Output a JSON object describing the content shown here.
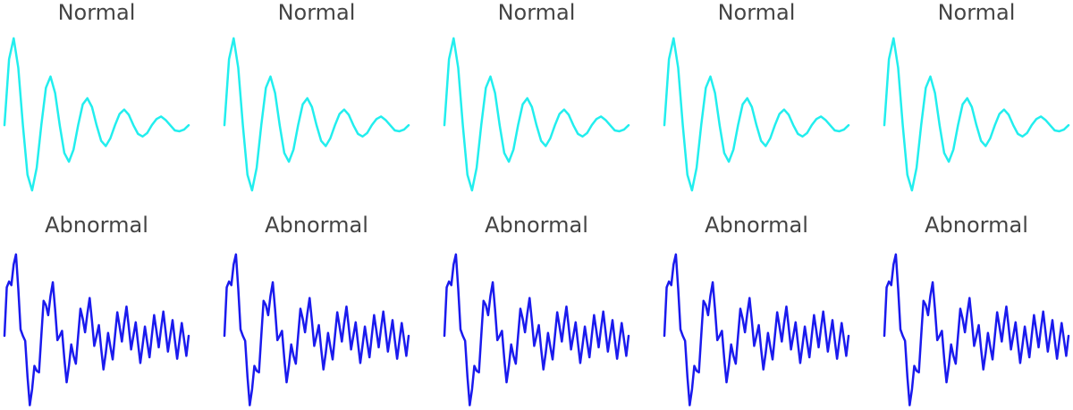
{
  "chart_data": [
    {
      "type": "line",
      "title": "Normal",
      "color": "#22eeee",
      "ylim": [
        -0.8,
        1.05
      ],
      "values": [
        0,
        0.76,
        1.0,
        0.66,
        0,
        -0.57,
        -0.75,
        -0.49,
        0,
        0.43,
        0.56,
        0.37,
        0,
        -0.32,
        -0.42,
        -0.28,
        0,
        0.24,
        0.31,
        0.21,
        0,
        -0.18,
        -0.24,
        -0.15,
        0,
        0.13,
        0.18,
        0.12,
        0,
        -0.1,
        -0.13,
        -0.09,
        0,
        0.07,
        0.1,
        0.06,
        0,
        -0.06,
        -0.07,
        -0.05,
        0
      ]
    },
    {
      "type": "line",
      "title": "Normal",
      "color": "#22eeee",
      "ylim": [
        -0.8,
        1.05
      ],
      "values": [
        0,
        0.76,
        1.0,
        0.66,
        0,
        -0.57,
        -0.75,
        -0.49,
        0,
        0.43,
        0.56,
        0.37,
        0,
        -0.32,
        -0.42,
        -0.28,
        0,
        0.24,
        0.31,
        0.21,
        0,
        -0.18,
        -0.24,
        -0.15,
        0,
        0.13,
        0.18,
        0.12,
        0,
        -0.1,
        -0.13,
        -0.09,
        0,
        0.07,
        0.1,
        0.06,
        0,
        -0.06,
        -0.07,
        -0.05,
        0
      ]
    },
    {
      "type": "line",
      "title": "Normal",
      "color": "#22eeee",
      "ylim": [
        -0.8,
        1.05
      ],
      "values": [
        0,
        0.76,
        1.0,
        0.66,
        0,
        -0.57,
        -0.75,
        -0.49,
        0,
        0.43,
        0.56,
        0.37,
        0,
        -0.32,
        -0.42,
        -0.28,
        0,
        0.24,
        0.31,
        0.21,
        0,
        -0.18,
        -0.24,
        -0.15,
        0,
        0.13,
        0.18,
        0.12,
        0,
        -0.1,
        -0.13,
        -0.09,
        0,
        0.07,
        0.1,
        0.06,
        0,
        -0.06,
        -0.07,
        -0.05,
        0
      ]
    },
    {
      "type": "line",
      "title": "Normal",
      "color": "#22eeee",
      "ylim": [
        -0.8,
        1.05
      ],
      "values": [
        0,
        0.76,
        1.0,
        0.66,
        0,
        -0.57,
        -0.75,
        -0.49,
        0,
        0.43,
        0.56,
        0.37,
        0,
        -0.32,
        -0.42,
        -0.28,
        0,
        0.24,
        0.31,
        0.21,
        0,
        -0.18,
        -0.24,
        -0.15,
        0,
        0.13,
        0.18,
        0.12,
        0,
        -0.1,
        -0.13,
        -0.09,
        0,
        0.07,
        0.1,
        0.06,
        0,
        -0.06,
        -0.07,
        -0.05,
        0
      ]
    },
    {
      "type": "line",
      "title": "Normal",
      "color": "#22eeee",
      "ylim": [
        -0.8,
        1.05
      ],
      "values": [
        0,
        0.76,
        1.0,
        0.66,
        0,
        -0.57,
        -0.75,
        -0.49,
        0,
        0.43,
        0.56,
        0.37,
        0,
        -0.32,
        -0.42,
        -0.28,
        0,
        0.24,
        0.31,
        0.21,
        0,
        -0.18,
        -0.24,
        -0.15,
        0,
        0.13,
        0.18,
        0.12,
        0,
        -0.1,
        -0.13,
        -0.09,
        0,
        0.07,
        0.1,
        0.06,
        0,
        -0.06,
        -0.07,
        -0.05,
        0
      ]
    },
    {
      "type": "line",
      "title": "Abnormal",
      "color": "#1a1aee",
      "ylim": [
        -1.0,
        1.2
      ],
      "values": [
        0,
        0.68,
        0.76,
        0.71,
        1.0,
        1.14,
        0.66,
        0.09,
        0,
        -0.07,
        -0.57,
        -0.97,
        -0.75,
        -0.42,
        -0.49,
        -0.51,
        0,
        0.49,
        0.43,
        0.29,
        0.56,
        0.75,
        0.37,
        -0.06,
        0,
        0.07,
        -0.32,
        -0.65,
        -0.42,
        -0.12,
        -0.28,
        -0.39,
        0,
        0.38,
        0.24,
        0.05,
        0.31,
        0.53,
        0.21,
        -0.14,
        0,
        0.15,
        -0.18,
        -0.47,
        -0.24,
        0.04,
        -0.15,
        -0.33,
        0,
        0.33,
        0.13,
        -0.08,
        0.18,
        0.41,
        0.12,
        -0.19,
        0,
        0.19,
        -0.1,
        -0.38,
        -0.13,
        0.13,
        -0.09,
        -0.3,
        0,
        0.29,
        0.07,
        -0.16,
        0.1,
        0.34,
        0.06,
        -0.22,
        0,
        0.22,
        -0.06,
        -0.32,
        -0.07,
        0.18,
        -0.05,
        -0.28,
        0
      ]
    },
    {
      "type": "line",
      "title": "Abnormal",
      "color": "#1a1aee",
      "ylim": [
        -1.0,
        1.2
      ],
      "values": [
        0,
        0.68,
        0.76,
        0.71,
        1.0,
        1.14,
        0.66,
        0.09,
        0,
        -0.07,
        -0.57,
        -0.97,
        -0.75,
        -0.42,
        -0.49,
        -0.51,
        0,
        0.49,
        0.43,
        0.29,
        0.56,
        0.75,
        0.37,
        -0.06,
        0,
        0.07,
        -0.32,
        -0.65,
        -0.42,
        -0.12,
        -0.28,
        -0.39,
        0,
        0.38,
        0.24,
        0.05,
        0.31,
        0.53,
        0.21,
        -0.14,
        0,
        0.15,
        -0.18,
        -0.47,
        -0.24,
        0.04,
        -0.15,
        -0.33,
        0,
        0.33,
        0.13,
        -0.08,
        0.18,
        0.41,
        0.12,
        -0.19,
        0,
        0.19,
        -0.1,
        -0.38,
        -0.13,
        0.13,
        -0.09,
        -0.3,
        0,
        0.29,
        0.07,
        -0.16,
        0.1,
        0.34,
        0.06,
        -0.22,
        0,
        0.22,
        -0.06,
        -0.32,
        -0.07,
        0.18,
        -0.05,
        -0.28,
        0
      ]
    },
    {
      "type": "line",
      "title": "Abnormal",
      "color": "#1a1aee",
      "ylim": [
        -1.0,
        1.2
      ],
      "values": [
        0,
        0.68,
        0.76,
        0.71,
        1.0,
        1.14,
        0.66,
        0.09,
        0,
        -0.07,
        -0.57,
        -0.97,
        -0.75,
        -0.42,
        -0.49,
        -0.51,
        0,
        0.49,
        0.43,
        0.29,
        0.56,
        0.75,
        0.37,
        -0.06,
        0,
        0.07,
        -0.32,
        -0.65,
        -0.42,
        -0.12,
        -0.28,
        -0.39,
        0,
        0.38,
        0.24,
        0.05,
        0.31,
        0.53,
        0.21,
        -0.14,
        0,
        0.15,
        -0.18,
        -0.47,
        -0.24,
        0.04,
        -0.15,
        -0.33,
        0,
        0.33,
        0.13,
        -0.08,
        0.18,
        0.41,
        0.12,
        -0.19,
        0,
        0.19,
        -0.1,
        -0.38,
        -0.13,
        0.13,
        -0.09,
        -0.3,
        0,
        0.29,
        0.07,
        -0.16,
        0.1,
        0.34,
        0.06,
        -0.22,
        0,
        0.22,
        -0.06,
        -0.32,
        -0.07,
        0.18,
        -0.05,
        -0.28,
        0
      ]
    },
    {
      "type": "line",
      "title": "Abnormal",
      "color": "#1a1aee",
      "ylim": [
        -1.0,
        1.2
      ],
      "values": [
        0,
        0.68,
        0.76,
        0.71,
        1.0,
        1.14,
        0.66,
        0.09,
        0,
        -0.07,
        -0.57,
        -0.97,
        -0.75,
        -0.42,
        -0.49,
        -0.51,
        0,
        0.49,
        0.43,
        0.29,
        0.56,
        0.75,
        0.37,
        -0.06,
        0,
        0.07,
        -0.32,
        -0.65,
        -0.42,
        -0.12,
        -0.28,
        -0.39,
        0,
        0.38,
        0.24,
        0.05,
        0.31,
        0.53,
        0.21,
        -0.14,
        0,
        0.15,
        -0.18,
        -0.47,
        -0.24,
        0.04,
        -0.15,
        -0.33,
        0,
        0.33,
        0.13,
        -0.08,
        0.18,
        0.41,
        0.12,
        -0.19,
        0,
        0.19,
        -0.1,
        -0.38,
        -0.13,
        0.13,
        -0.09,
        -0.3,
        0,
        0.29,
        0.07,
        -0.16,
        0.1,
        0.34,
        0.06,
        -0.22,
        0,
        0.22,
        -0.06,
        -0.32,
        -0.07,
        0.18,
        -0.05,
        -0.28,
        0
      ]
    },
    {
      "type": "line",
      "title": "Abnormal",
      "color": "#1a1aee",
      "ylim": [
        -1.0,
        1.2
      ],
      "values": [
        0,
        0.68,
        0.76,
        0.71,
        1.0,
        1.14,
        0.66,
        0.09,
        0,
        -0.07,
        -0.57,
        -0.97,
        -0.75,
        -0.42,
        -0.49,
        -0.51,
        0,
        0.49,
        0.43,
        0.29,
        0.56,
        0.75,
        0.37,
        -0.06,
        0,
        0.07,
        -0.32,
        -0.65,
        -0.42,
        -0.12,
        -0.28,
        -0.39,
        0,
        0.38,
        0.24,
        0.05,
        0.31,
        0.53,
        0.21,
        -0.14,
        0,
        0.15,
        -0.18,
        -0.47,
        -0.24,
        0.04,
        -0.15,
        -0.33,
        0,
        0.33,
        0.13,
        -0.08,
        0.18,
        0.41,
        0.12,
        -0.19,
        0,
        0.19,
        -0.1,
        -0.38,
        -0.13,
        0.13,
        -0.09,
        -0.3,
        0,
        0.29,
        0.07,
        -0.16,
        0.1,
        0.34,
        0.06,
        -0.22,
        0,
        0.22,
        -0.06,
        -0.32,
        -0.07,
        0.18,
        -0.05,
        -0.28,
        0
      ]
    }
  ]
}
